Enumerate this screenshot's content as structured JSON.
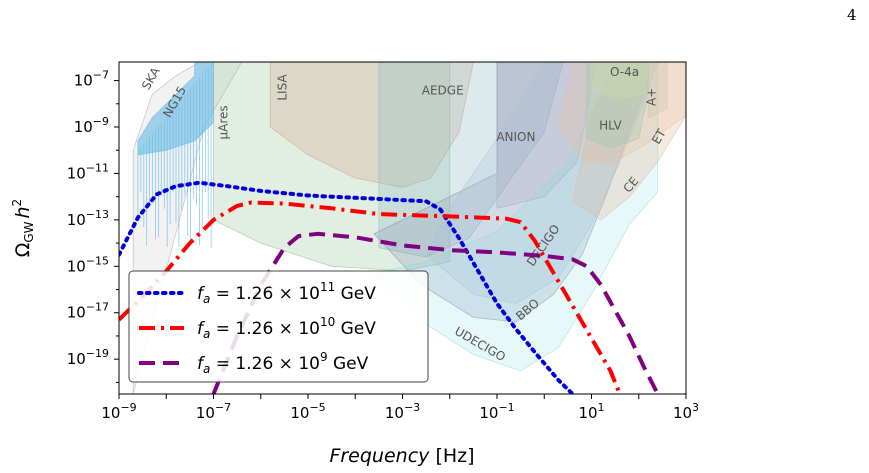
{
  "page": {
    "number": "4"
  },
  "chart_data": {
    "type": "line",
    "title": "",
    "xlabel_main": "Frequency",
    "xlabel_unit": "[Hz]",
    "ylabel_base": "Ω",
    "ylabel_sub": "GW",
    "ylabel_h": "h",
    "ylabel_sup": "2",
    "xscale": "log",
    "yscale": "log",
    "xlim_exp": [
      -9,
      3
    ],
    "ylim_exp": [
      -20.5,
      -6.2
    ],
    "x_ticks": [
      {
        "exp": -9,
        "label": "10",
        "sup": "−9"
      },
      {
        "exp": -7,
        "label": "10",
        "sup": "−7"
      },
      {
        "exp": -5,
        "label": "10",
        "sup": "−5"
      },
      {
        "exp": -3,
        "label": "10",
        "sup": "−3"
      },
      {
        "exp": -1,
        "label": "10",
        "sup": "−1"
      },
      {
        "exp": 1,
        "label": "10",
        "sup": "1"
      },
      {
        "exp": 3,
        "label": "10",
        "sup": "3"
      }
    ],
    "y_ticks": [
      {
        "exp": -7,
        "label": "10",
        "sup": "−7"
      },
      {
        "exp": -9,
        "label": "10",
        "sup": "−9"
      },
      {
        "exp": -11,
        "label": "10",
        "sup": "−11"
      },
      {
        "exp": -13,
        "label": "10",
        "sup": "−13"
      },
      {
        "exp": -15,
        "label": "10",
        "sup": "−15"
      },
      {
        "exp": -17,
        "label": "10",
        "sup": "−17"
      },
      {
        "exp": -19,
        "label": "10",
        "sup": "−19"
      }
    ],
    "legend_position": "lower-left",
    "series": [
      {
        "name": "f_a = 1.26 × 10^11 GeV",
        "legend_main": "f",
        "legend_sub": "a",
        "legend_mid": " = 1.26 × 10",
        "legend_sup": "11",
        "legend_end": " GeV",
        "color": "#0000dd",
        "style": "dotted",
        "points": [
          [
            -9.0,
            -14.5
          ],
          [
            -8.6,
            -12.9
          ],
          [
            -8.2,
            -11.9
          ],
          [
            -7.8,
            -11.55
          ],
          [
            -7.3,
            -11.4
          ],
          [
            -6.7,
            -11.55
          ],
          [
            -6.0,
            -11.75
          ],
          [
            -5.0,
            -11.95
          ],
          [
            -4.0,
            -12.05
          ],
          [
            -3.0,
            -12.15
          ],
          [
            -2.5,
            -12.2
          ],
          [
            -2.2,
            -12.55
          ],
          [
            -1.8,
            -13.8
          ],
          [
            -1.4,
            -15.2
          ],
          [
            -1.0,
            -16.6
          ],
          [
            -0.6,
            -17.7
          ],
          [
            -0.2,
            -18.7
          ],
          [
            0.3,
            -19.9
          ],
          [
            0.6,
            -20.5
          ]
        ]
      },
      {
        "name": "f_a = 1.26 × 10^10 GeV",
        "legend_main": "f",
        "legend_sub": "a",
        "legend_mid": " = 1.26 × 10",
        "legend_sup": "10",
        "legend_end": " GeV",
        "color": "#ff0000",
        "style": "dashdot",
        "points": [
          [
            -9.0,
            -17.3
          ],
          [
            -8.5,
            -16.3
          ],
          [
            -8.0,
            -15.2
          ],
          [
            -7.5,
            -14.0
          ],
          [
            -7.0,
            -13.0
          ],
          [
            -6.5,
            -12.4
          ],
          [
            -6.2,
            -12.25
          ],
          [
            -5.5,
            -12.3
          ],
          [
            -4.5,
            -12.5
          ],
          [
            -3.5,
            -12.75
          ],
          [
            -2.0,
            -12.85
          ],
          [
            -0.8,
            -12.95
          ],
          [
            -0.5,
            -13.1
          ],
          [
            -0.2,
            -13.9
          ],
          [
            0.2,
            -15.3
          ],
          [
            0.6,
            -16.7
          ],
          [
            1.0,
            -18.1
          ],
          [
            1.4,
            -19.5
          ],
          [
            1.6,
            -20.5
          ]
        ]
      },
      {
        "name": "f_a = 1.26 × 10^9 GeV",
        "legend_main": "f",
        "legend_sub": "a",
        "legend_mid": " = 1.26 × 10",
        "legend_sup": "9",
        "legend_end": " GeV",
        "color": "#800080",
        "style": "dashed",
        "points": [
          [
            -7.0,
            -20.5
          ],
          [
            -6.5,
            -18.0
          ],
          [
            -6.0,
            -15.8
          ],
          [
            -5.5,
            -14.2
          ],
          [
            -5.2,
            -13.7
          ],
          [
            -4.8,
            -13.6
          ],
          [
            -4.0,
            -13.75
          ],
          [
            -3.0,
            -14.1
          ],
          [
            -2.0,
            -14.3
          ],
          [
            -1.0,
            -14.4
          ],
          [
            0.0,
            -14.55
          ],
          [
            0.6,
            -14.7
          ],
          [
            0.9,
            -15.0
          ],
          [
            1.2,
            -15.8
          ],
          [
            1.5,
            -16.9
          ],
          [
            1.8,
            -18.0
          ],
          [
            2.1,
            -19.3
          ],
          [
            2.4,
            -20.5
          ]
        ]
      }
    ],
    "sensitivity_regions": [
      {
        "name": "SKA",
        "label": "SKA",
        "color": "#a8a8a8",
        "opacity": 0.15,
        "label_rotate": -60,
        "label_pos": [
          -8.25,
          -7.0
        ],
        "polygon": [
          [
            -8.7,
            -20.5
          ],
          [
            -8.7,
            -10.0
          ],
          [
            -8.3,
            -7.6
          ],
          [
            -7.8,
            -6.8
          ],
          [
            -7.3,
            -6.2
          ],
          [
            -6.4,
            -6.2
          ],
          [
            -7.2,
            -9.0
          ]
        ]
      },
      {
        "name": "NG15",
        "label": "NG15",
        "color": "#5ab4e8",
        "opacity": 0.55,
        "label_rotate": -60,
        "label_pos": [
          -7.75,
          -8.0
        ],
        "polygon": [
          [
            -8.6,
            -10.2
          ],
          [
            -8.6,
            -9.6
          ],
          [
            -8.3,
            -8.6
          ],
          [
            -7.8,
            -7.6
          ],
          [
            -7.4,
            -6.8
          ],
          [
            -7.4,
            -6.2
          ],
          [
            -7.0,
            -6.2
          ],
          [
            -7.0,
            -8.8
          ],
          [
            -7.4,
            -9.6
          ],
          [
            -8.0,
            -10.0
          ]
        ]
      },
      {
        "name": "muAres",
        "label": "μAres",
        "color": "#8fbc8f",
        "opacity": 0.25,
        "label_rotate": -90,
        "label_pos": [
          -6.7,
          -8.8
        ],
        "polygon": [
          [
            -7.0,
            -6.2
          ],
          [
            -7.0,
            -13.0
          ],
          [
            -6.0,
            -14.0
          ],
          [
            -4.5,
            -15.0
          ],
          [
            -3.0,
            -15.2
          ],
          [
            -2.0,
            -14.8
          ],
          [
            -2.0,
            -6.2
          ]
        ]
      },
      {
        "name": "LISA",
        "label": "LISA",
        "color": "#c9a48a",
        "opacity": 0.3,
        "label_rotate": -90,
        "label_pos": [
          -5.45,
          -7.3
        ],
        "polygon": [
          [
            -5.8,
            -6.2
          ],
          [
            -5.8,
            -9.0
          ],
          [
            -5.0,
            -10.2
          ],
          [
            -4.0,
            -11.2
          ],
          [
            -3.0,
            -11.6
          ],
          [
            -2.4,
            -11.2
          ],
          [
            -1.8,
            -9.2
          ],
          [
            -1.5,
            -6.2
          ]
        ]
      },
      {
        "name": "AEDGE",
        "label": "AEDGE",
        "color": "#8ab8c8",
        "opacity": 0.3,
        "label_rotate": 0,
        "label_pos": [
          -2.15,
          -7.6
        ],
        "polygon": [
          [
            -3.5,
            -6.2
          ],
          [
            -3.5,
            -14.2
          ],
          [
            -2.5,
            -14.6
          ],
          [
            -1.6,
            -13.8
          ],
          [
            -0.8,
            -11.5
          ],
          [
            0.0,
            -9.2
          ],
          [
            0.4,
            -6.2
          ]
        ]
      },
      {
        "name": "ANION",
        "label": "ANION",
        "color": "#b0a0b8",
        "opacity": 0.25,
        "label_rotate": 0,
        "label_pos": [
          -0.6,
          -9.6
        ],
        "polygon": [
          [
            -1.0,
            -6.2
          ],
          [
            -1.0,
            -12.5
          ],
          [
            0.0,
            -12.0
          ],
          [
            0.7,
            -10.5
          ],
          [
            1.1,
            -6.2
          ]
        ]
      },
      {
        "name": "BBO",
        "label": "BBO",
        "color": "#8090b0",
        "opacity": 0.25,
        "label_rotate": -40,
        "label_pos": [
          -0.3,
          -17.0
        ],
        "polygon": [
          [
            -3.6,
            -13.6
          ],
          [
            -2.6,
            -15.8
          ],
          [
            -1.5,
            -17.2
          ],
          [
            -0.6,
            -17.4
          ],
          [
            0.2,
            -16.2
          ],
          [
            0.8,
            -14.5
          ],
          [
            1.3,
            -12.0
          ],
          [
            1.8,
            -9.2
          ],
          [
            2.2,
            -7.0
          ],
          [
            2.2,
            -6.2
          ],
          [
            -1.0,
            -6.2
          ],
          [
            -1.0,
            -11.0
          ]
        ]
      },
      {
        "name": "DECIGO",
        "label": "DECIGO",
        "color": "#a8c0d8",
        "opacity": 0.25,
        "label_rotate": -55,
        "label_pos": [
          0.05,
          -14.2
        ],
        "polygon": [
          [
            -2.5,
            -14.5
          ],
          [
            -1.5,
            -16.2
          ],
          [
            -0.6,
            -16.6
          ],
          [
            0.3,
            -15.5
          ],
          [
            1.0,
            -13.2
          ],
          [
            1.6,
            -10.5
          ],
          [
            2.2,
            -7.4
          ],
          [
            2.4,
            -6.2
          ],
          [
            0.0,
            -6.2
          ],
          [
            -1.0,
            -9.5
          ],
          [
            -2.0,
            -12.5
          ]
        ]
      },
      {
        "name": "UDECIGO",
        "label": "UDECIGO",
        "color": "#88dde0",
        "opacity": 0.2,
        "label_rotate": 30,
        "label_pos": [
          -1.4,
          -18.5
        ],
        "polygon": [
          [
            -3.6,
            -15.3
          ],
          [
            -2.5,
            -17.5
          ],
          [
            -1.5,
            -18.8
          ],
          [
            -0.5,
            -19.5
          ],
          [
            0.3,
            -18.5
          ],
          [
            1.0,
            -16.2
          ],
          [
            1.8,
            -13.2
          ],
          [
            2.4,
            -11.8
          ],
          [
            2.4,
            -6.2
          ],
          [
            1.5,
            -6.2
          ],
          [
            0.5,
            -10.5
          ],
          [
            -1.0,
            -13.5
          ],
          [
            -2.5,
            -14.8
          ]
        ]
      },
      {
        "name": "CE",
        "label": "CE",
        "color": "#e0b8a0",
        "opacity": 0.3,
        "label_rotate": -50,
        "label_pos": [
          1.9,
          -11.6
        ],
        "polygon": [
          [
            0.6,
            -12.2
          ],
          [
            1.2,
            -13.0
          ],
          [
            1.8,
            -12.0
          ],
          [
            2.4,
            -10.5
          ],
          [
            3.0,
            -8.5
          ],
          [
            3.0,
            -6.2
          ],
          [
            1.6,
            -6.2
          ],
          [
            1.0,
            -8.5
          ]
        ]
      },
      {
        "name": "ET",
        "label": "ET",
        "color": "#e8c0a0",
        "opacity": 0.3,
        "label_rotate": -60,
        "label_pos": [
          2.5,
          -9.5
        ],
        "polygon": [
          [
            0.3,
            -9.0
          ],
          [
            0.8,
            -10.4
          ],
          [
            1.4,
            -10.6
          ],
          [
            2.1,
            -9.8
          ],
          [
            3.0,
            -8.5
          ],
          [
            3.0,
            -6.2
          ],
          [
            0.6,
            -6.2
          ]
        ]
      },
      {
        "name": "HLV",
        "label": "HLV",
        "color": "#a0c8b0",
        "opacity": 0.35,
        "label_rotate": 0,
        "label_pos": [
          1.4,
          -9.1
        ],
        "polygon": [
          [
            0.9,
            -6.2
          ],
          [
            0.9,
            -9.5
          ],
          [
            1.4,
            -9.9
          ],
          [
            2.0,
            -9.5
          ],
          [
            2.2,
            -7.5
          ],
          [
            2.2,
            -6.2
          ]
        ]
      },
      {
        "name": "O-4a",
        "label": "O-4a",
        "color": "#c8d8a8",
        "opacity": 0.45,
        "label_rotate": 0,
        "label_pos": [
          1.7,
          -6.8
        ],
        "polygon": [
          [
            1.0,
            -6.2
          ],
          [
            1.0,
            -7.4
          ],
          [
            1.6,
            -7.8
          ],
          [
            2.1,
            -7.6
          ],
          [
            2.2,
            -6.6
          ],
          [
            2.2,
            -6.2
          ]
        ]
      },
      {
        "name": "A+",
        "label": "A+",
        "color": "#c8c8a8",
        "opacity": 0.3,
        "label_rotate": -90,
        "label_pos": [
          2.35,
          -7.7
        ],
        "polygon": [
          [
            2.2,
            -6.2
          ],
          [
            2.2,
            -8.6
          ],
          [
            2.6,
            -8.2
          ],
          [
            2.6,
            -6.2
          ]
        ]
      }
    ]
  }
}
